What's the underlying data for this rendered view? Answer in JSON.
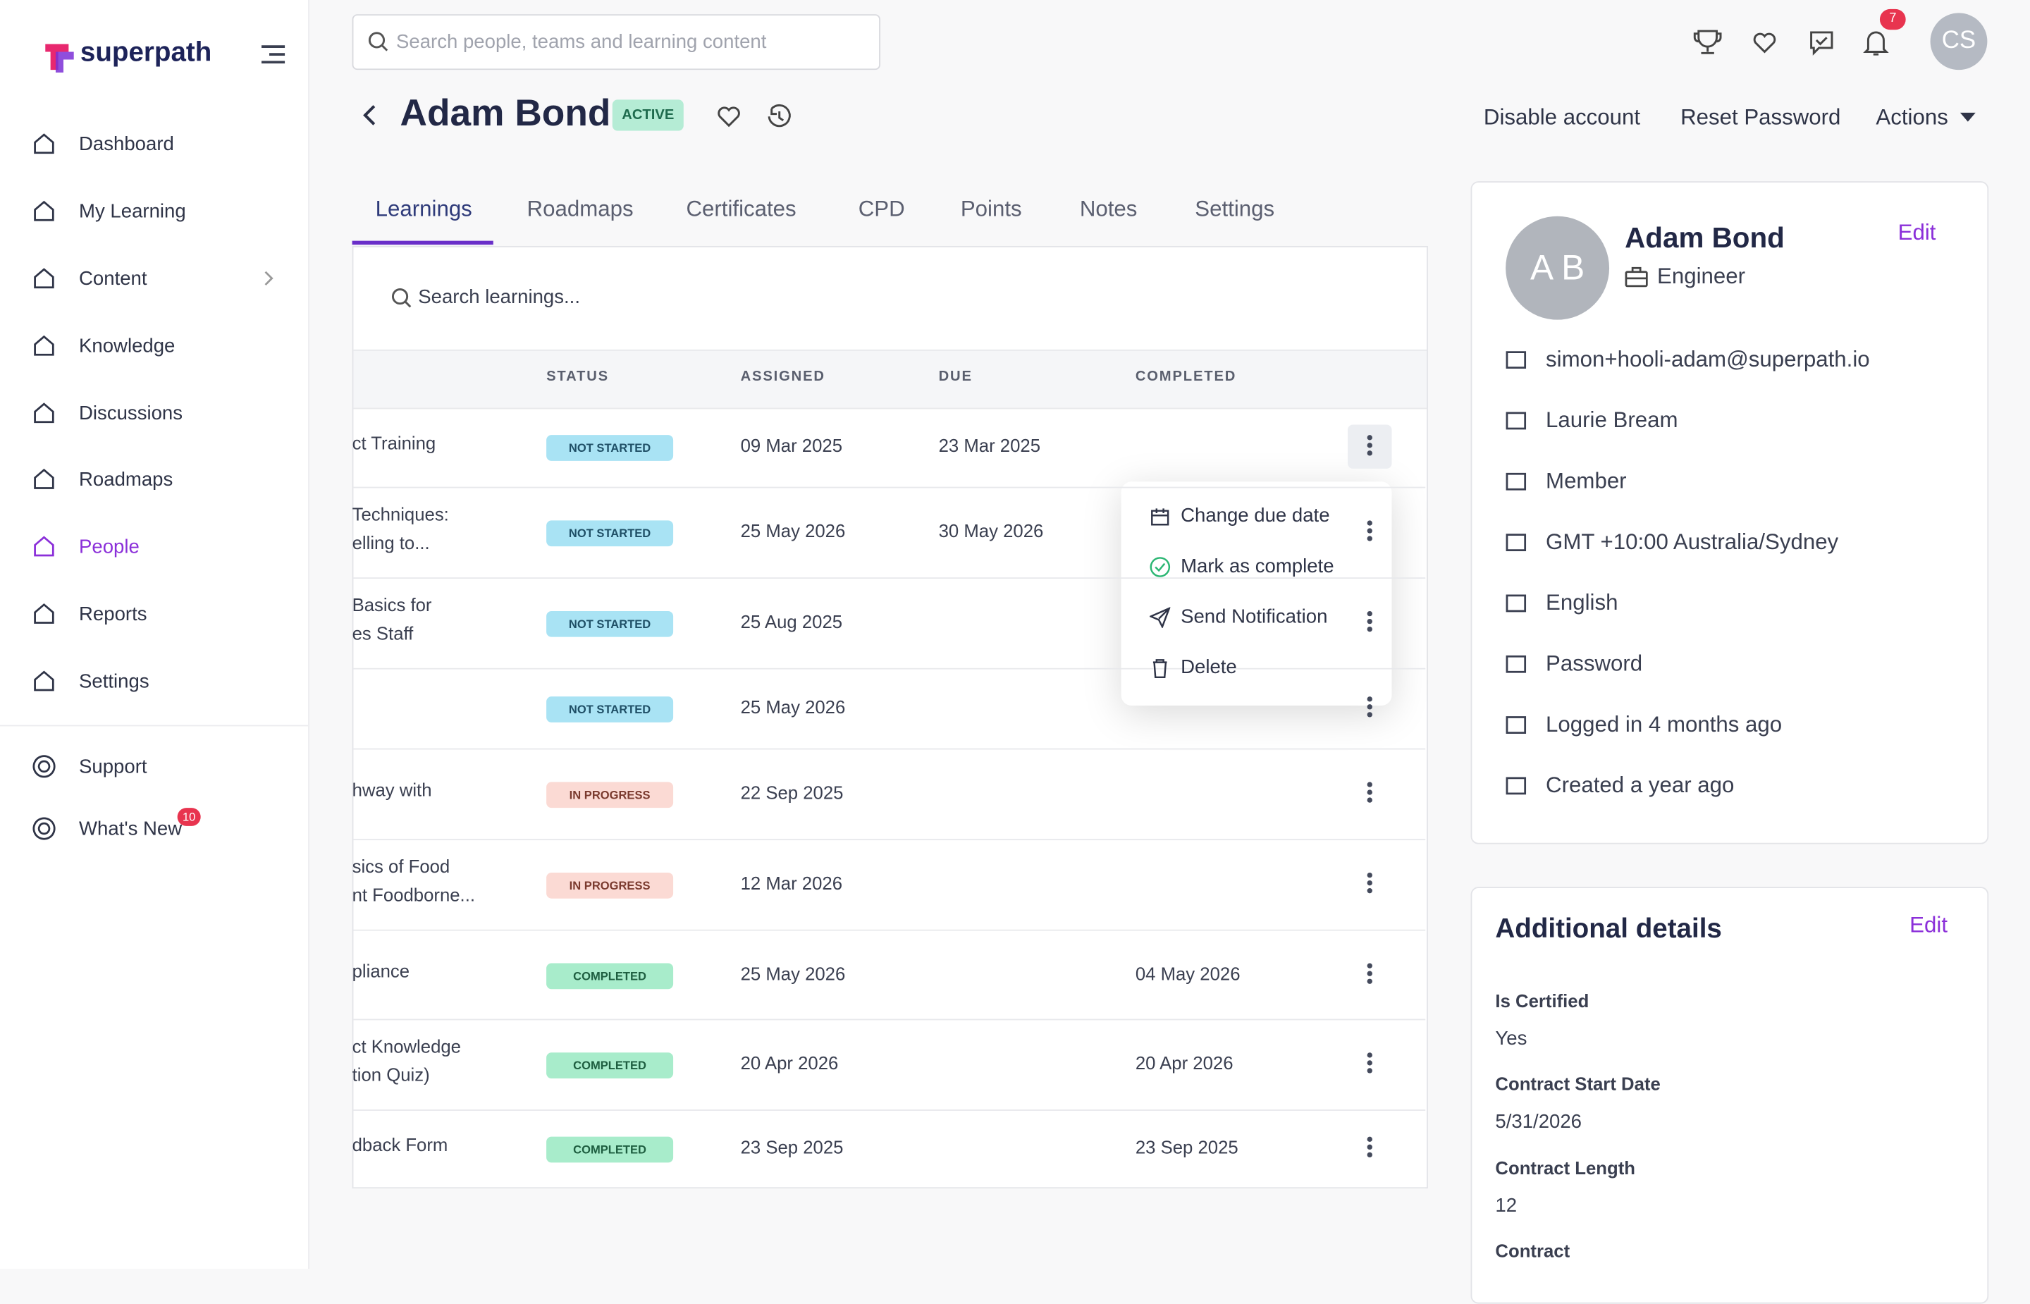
{
  "sidebar": {
    "brand": "superpath",
    "nav": [
      "Dashboard",
      "My Learning",
      "Content",
      "Knowledge",
      "Discussions",
      "Roadmaps",
      "People",
      "Reports",
      "Settings"
    ],
    "footer_nav": [
      "Support",
      "What's New"
    ],
    "whats_new_badge": 10
  },
  "topbar": {
    "search_placeholder": "Search people, teams and learning content",
    "notification_count": 7,
    "avatar": "CS"
  },
  "profile": {
    "name": "Adam Bond",
    "status": "ACTIVE",
    "actions": [
      "Disable account",
      "Reset Password",
      "Actions"
    ]
  },
  "tabs": [
    "Learnings",
    "Roadmaps",
    "Certificates",
    "CPD",
    "Points",
    "Notes",
    "Settings"
  ],
  "learnings": {
    "search_placeholder": "Search learnings...",
    "columns": [
      "STATUS",
      "ASSIGNED",
      "DUE",
      "COMPLETED"
    ],
    "rows": [
      {
        "title": [
          "ct Training"
        ],
        "status": "NOT STARTED",
        "assigned": "09 Mar 2025",
        "due": "23 Mar 2025",
        "completed": null
      },
      {
        "title": [
          "Techniques:",
          "elling to..."
        ],
        "status": "NOT STARTED",
        "assigned": "25 May 2026",
        "due": "30 May 2026",
        "completed": null
      },
      {
        "title": [
          "Basics for",
          "es Staff"
        ],
        "status": "NOT STARTED",
        "assigned": "25 Aug 2025",
        "due": null,
        "completed": null
      },
      {
        "title": [],
        "status": "NOT STARTED",
        "assigned": "25 May 2026",
        "due": null,
        "completed": null
      },
      {
        "title": [
          "hway with"
        ],
        "status": "IN PROGRESS",
        "assigned": "22 Sep 2025",
        "due": null,
        "completed": null
      },
      {
        "title": [
          "sics of Food",
          "nt Foodborne..."
        ],
        "status": "IN PROGRESS",
        "assigned": "12 Mar 2026",
        "due": null,
        "completed": null
      },
      {
        "title": [
          "pliance"
        ],
        "status": "COMPLETED",
        "assigned": "25 May 2026",
        "due": null,
        "completed": "04 May 2026"
      },
      {
        "title": [
          "ct Knowledge",
          "tion Quiz)"
        ],
        "status": "COMPLETED",
        "assigned": "20 Apr 2026",
        "due": null,
        "completed": "20 Apr 2026"
      },
      {
        "title": [
          "dback Form"
        ],
        "status": "COMPLETED",
        "assigned": "23 Sep 2025",
        "due": null,
        "completed": "23 Sep 2025"
      }
    ],
    "menu": [
      "Change due date",
      "Mark as complete",
      "Send Notification",
      "Delete"
    ]
  },
  "card": {
    "initials": "A B",
    "name": "Adam Bond",
    "role": "Engineer",
    "edit": "Edit",
    "details": [
      "simon+hooli-adam@superpath.io",
      "Laurie Bream",
      "Member",
      "GMT +10:00 Australia/Sydney",
      "English",
      "Password",
      "Logged in 4 months ago",
      "Created a year ago"
    ]
  },
  "additional": {
    "title": "Additional details",
    "edit": "Edit",
    "fields": [
      {
        "label": "Is Certified",
        "value": "Yes"
      },
      {
        "label": "Contract Start Date",
        "value": "5/31/2026"
      },
      {
        "label": "Contract Length",
        "value": "12"
      },
      {
        "label": "Contract",
        "value": null
      }
    ]
  }
}
